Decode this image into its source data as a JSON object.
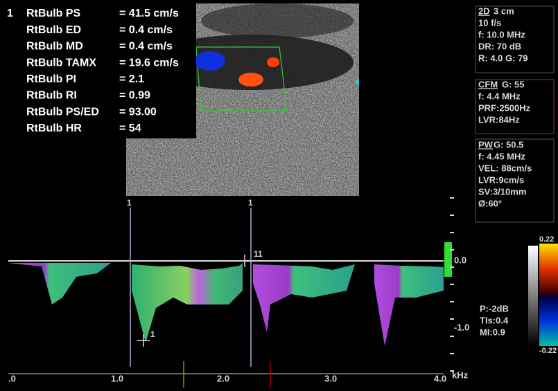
{
  "cursor_index": "1",
  "measurements": [
    {
      "label": "RtBulb PS",
      "value": "= 41.5 cm/s"
    },
    {
      "label": "RtBulb ED",
      "value": "=  0.4 cm/s"
    },
    {
      "label": "RtBulb MD",
      "value": "=  0.4 cm/s"
    },
    {
      "label": "RtBulb TAMX",
      "value": "= 19.6 cm/s"
    },
    {
      "label": "RtBulb PI",
      "value": "=  2.1"
    },
    {
      "label": "RtBulb RI",
      "value": "=  0.99"
    },
    {
      "label": "RtBulb PS/ED",
      "value": "= 93.00"
    },
    {
      "label": "RtBulb HR",
      "value": "=  54"
    }
  ],
  "panel_2d": {
    "tag": "2D",
    "head": "3 cm",
    "lines": [
      "10 f/s",
      "f: 10.0 MHz",
      "DR: 70 dB",
      "R: 4.0   G: 79"
    ]
  },
  "panel_cfm": {
    "tag": "CFM",
    "head": "G: 55",
    "lines": [
      "f: 4.4 MHz",
      "PRF:2500Hz",
      "LVR:84Hz"
    ]
  },
  "panel_pw": {
    "tag": "PW",
    "head": "G: 50.5",
    "lines": [
      "f: 4.45 MHz",
      "VEL: 88cm/s",
      "LVR:9cm/s",
      "SV:3/10mm",
      "Ø:60°"
    ]
  },
  "output": [
    "P:-2dB",
    "TIs:0.4",
    "MI:0.9"
  ],
  "color_bar": {
    "top": "0.22",
    "bottom": "-0.22"
  },
  "velocity_scale": {
    "labels": [
      "0.0",
      "-1.0"
    ],
    "unit": "kHz"
  },
  "time_axis": [
    ".0",
    "1.0",
    "2.0",
    "3.0",
    "4.0"
  ],
  "markers": [
    "1",
    "1",
    "11",
    "1"
  ]
}
